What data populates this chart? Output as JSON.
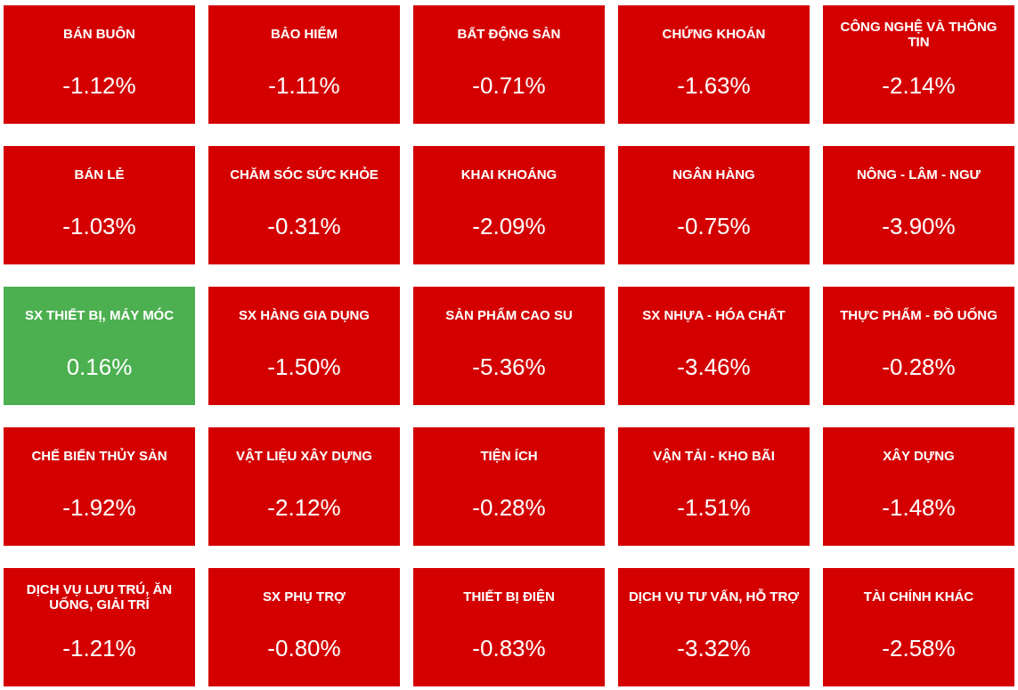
{
  "chart_data": {
    "type": "other",
    "categories": [
      "BÁN BUÔN",
      "BẢO HIỂM",
      "BẤT ĐỘNG SẢN",
      "CHỨNG KHOÁN",
      "CÔNG NGHỆ VÀ THÔNG TIN",
      "BÁN LẺ",
      "CHĂM SÓC SỨC KHỎE",
      "KHAI KHOÁNG",
      "NGÂN HÀNG",
      "NÔNG - LÂM - NGƯ",
      "SX THIẾT BỊ, MÁY MÓC",
      "SX HÀNG GIA DỤNG",
      "SẢN PHẨM CAO SU",
      "SX NHỰA - HÓA CHẤT",
      "THỰC PHẨM - ĐỒ UỐNG",
      "CHẾ BIẾN THỦY SẢN",
      "VẬT LIỆU XÂY DỰNG",
      "TIỆN ÍCH",
      "VẬN TẢI - KHO BÃI",
      "XÂY DỰNG",
      "DỊCH VỤ LƯU TRÚ, ĂN UỐNG, GIẢI TRÍ",
      "SX PHỤ TRỢ",
      "THIẾT BỊ ĐIỆN",
      "DỊCH VỤ TƯ VẤN, HỖ TRỢ",
      "TÀI CHÍNH KHÁC"
    ],
    "values": [
      -1.12,
      -1.11,
      -0.71,
      -1.63,
      -2.14,
      -1.03,
      -0.31,
      -2.09,
      -0.75,
      -3.9,
      0.16,
      -1.5,
      -5.36,
      -3.46,
      -0.28,
      -1.92,
      -2.12,
      -0.28,
      -1.51,
      -1.48,
      -1.21,
      -0.8,
      -0.83,
      -3.32,
      -2.58
    ],
    "value_labels": [
      "-1.12%",
      "-1.11%",
      "-0.71%",
      "-1.63%",
      "-2.14%",
      "-1.03%",
      "-0.31%",
      "-2.09%",
      "-0.75%",
      "-3.90%",
      "0.16%",
      "-1.50%",
      "-5.36%",
      "-3.46%",
      "-0.28%",
      "-1.92%",
      "-2.12%",
      "-0.28%",
      "-1.51%",
      "-1.48%",
      "-1.21%",
      "-0.80%",
      "-0.83%",
      "-3.32%",
      "-2.58%"
    ],
    "colors": [
      "#d40000",
      "#d40000",
      "#d40000",
      "#d40000",
      "#d40000",
      "#d40000",
      "#d40000",
      "#d40000",
      "#d40000",
      "#d40000",
      "#4caf50",
      "#d40000",
      "#d40000",
      "#d40000",
      "#d40000",
      "#d40000",
      "#d40000",
      "#d40000",
      "#d40000",
      "#d40000",
      "#d40000",
      "#d40000",
      "#d40000",
      "#d40000",
      "#d40000"
    ]
  }
}
